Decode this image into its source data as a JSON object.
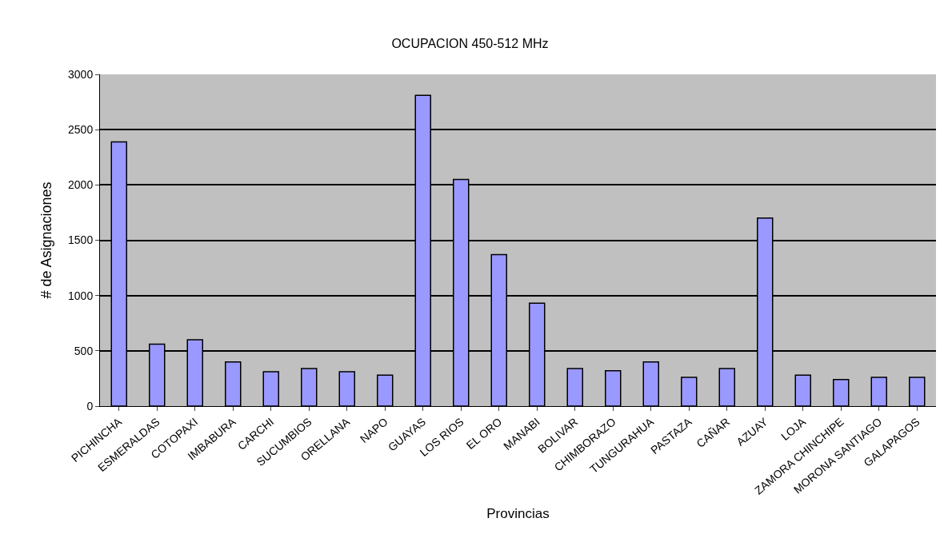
{
  "chart_data": {
    "type": "bar",
    "title": "OCUPACION 450-512 MHz",
    "xlabel": "Provincias",
    "ylabel": "# de Asignaciones",
    "categories": [
      "PICHINCHA",
      "ESMERALDAS",
      "COTOPAXI",
      "IMBABURA",
      "CARCHI",
      "SUCUMBIOS",
      "ORELLANA",
      "NAPO",
      "GUAYAS",
      "LOS RIOS",
      "EL ORO",
      "MANABI",
      "BOLIVAR",
      "CHIMBORAZO",
      "TUNGURAHUA",
      "PASTAZA",
      "CAÑAR",
      "AZUAY",
      "LOJA",
      "ZAMORA CHINCHIPE",
      "MORONA SANTIAGO",
      "GALAPAGOS"
    ],
    "values": [
      2390,
      560,
      600,
      400,
      310,
      340,
      310,
      280,
      2810,
      2050,
      1370,
      930,
      340,
      320,
      400,
      260,
      340,
      1700,
      280,
      240,
      260,
      260
    ],
    "color": "#9999ff",
    "ylim": [
      0,
      3000
    ],
    "yticks": [
      0,
      500,
      1000,
      1500,
      2000,
      2500,
      3000
    ],
    "grid": "y"
  }
}
